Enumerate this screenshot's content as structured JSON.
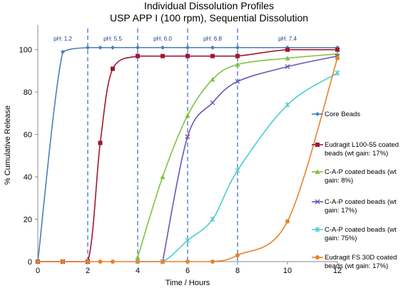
{
  "chart_data": {
    "type": "line",
    "title": "Individual Dissolution Profiles",
    "subtitle": "USP APP I (100 rpm), Sequential Dissolution",
    "xlabel": "Time / Hours",
    "ylabel": "% Cumulative Release",
    "xlim": [
      0,
      12
    ],
    "ylim": [
      0,
      110
    ],
    "xticks": [
      0,
      2,
      4,
      6,
      8,
      10,
      12
    ],
    "yticks": [
      0,
      20,
      40,
      60,
      80,
      100
    ],
    "grid": false,
    "legend_position": "right",
    "ph_markers": [
      {
        "label": "pH: 1.2",
        "x": 1.0
      },
      {
        "label": "pH: 5.5",
        "x": 3.0
      },
      {
        "label": "pH: 6.0",
        "x": 5.0
      },
      {
        "label": "pH: 6.8",
        "x": 7.0
      },
      {
        "label": "pH: 7.4",
        "x": 10.0
      }
    ],
    "ph_boundaries": [
      2,
      4,
      6,
      8
    ],
    "series": [
      {
        "name": "Core Beads",
        "color": "#4a7ebb",
        "marker": "diamond",
        "x": [
          0,
          1,
          2,
          2.5,
          3,
          4,
          5,
          6,
          7,
          8,
          10,
          12
        ],
        "y": [
          0,
          99,
          101,
          101,
          101,
          101,
          101,
          101,
          101,
          101,
          101,
          101
        ]
      },
      {
        "name": "Eudragit L100-55 coated beads (wt gain: 17%)",
        "color": "#a0182f",
        "marker": "square",
        "x": [
          0,
          1,
          2,
          2.5,
          3,
          4,
          5,
          6,
          7,
          8,
          10,
          12
        ],
        "y": [
          0,
          0,
          0,
          56,
          91,
          97,
          97,
          97,
          97,
          97,
          100,
          100
        ]
      },
      {
        "name": "C-A-P coated beads (wt gain: 8%)",
        "color": "#7fc241",
        "marker": "triangle",
        "x": [
          4,
          5,
          6,
          7,
          8,
          10,
          12
        ],
        "y": [
          2,
          40,
          69,
          86,
          93,
          96,
          98
        ]
      },
      {
        "name": "C-A-P coated beads (wt gain: 17%)",
        "color": "#6b55b8",
        "marker": "x",
        "x": [
          5,
          6,
          7,
          8,
          10,
          12
        ],
        "y": [
          0,
          59,
          75,
          85,
          92,
          97
        ]
      },
      {
        "name": "C-A-P coated beads (wt gain: 75%)",
        "color": "#4ccbcc",
        "marker": "star",
        "x": [
          4,
          5,
          6,
          7,
          8,
          10,
          12
        ],
        "y": [
          0,
          0,
          10,
          20,
          43,
          74,
          89
        ]
      },
      {
        "name": "Eudragit FS 30D coated beads (wt gain: 17%)",
        "color": "#e8822b",
        "marker": "circle",
        "x": [
          0,
          1,
          2,
          2.5,
          3,
          4,
          5,
          6,
          7,
          8,
          10,
          12
        ],
        "y": [
          0,
          0,
          0,
          0,
          0,
          0,
          0,
          0,
          0,
          3,
          19,
          96
        ]
      }
    ],
    "legend_lines": [
      [
        "Core Beads"
      ],
      [
        "Eudragit L100-55 coated",
        "beads (wt gain: 17%)"
      ],
      [
        "C-A-P coated beads (wt",
        "gain: 8%)"
      ],
      [
        "C-A-P coated beads (wt",
        "gain: 17%)"
      ],
      [
        "C-A-P coated beads (wt",
        "gain: 75%)"
      ],
      [
        "Eudragit FS 30D coated",
        "beads (wt gain: 17%)"
      ]
    ]
  }
}
